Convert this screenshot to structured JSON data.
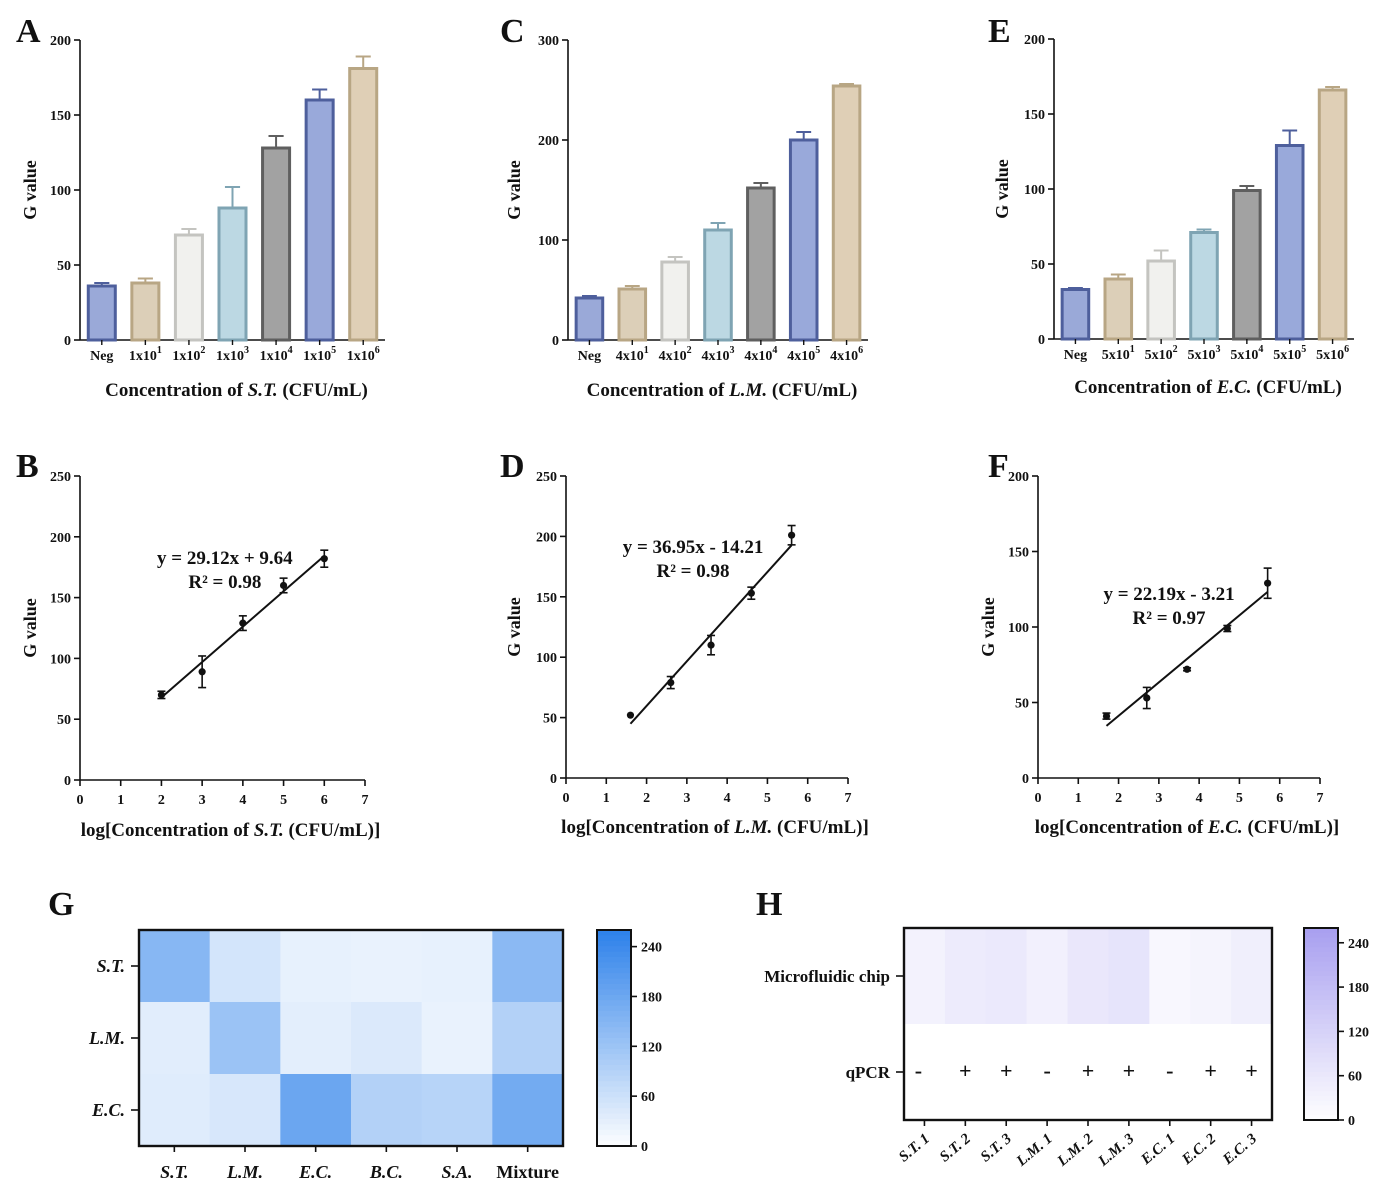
{
  "chart_data": [
    {
      "id": "A",
      "type": "bar",
      "panel_label": "A",
      "categories": [
        "Neg",
        "1x10^1",
        "1x10^2",
        "1x10^3",
        "1x10^4",
        "1x10^5",
        "1x10^6"
      ],
      "tick_labels": [
        {
          "base": "Neg",
          "sup": ""
        },
        {
          "base": "1x10",
          "sup": "1"
        },
        {
          "base": "1x10",
          "sup": "2"
        },
        {
          "base": "1x10",
          "sup": "3"
        },
        {
          "base": "1x10",
          "sup": "4"
        },
        {
          "base": "1x10",
          "sup": "5"
        },
        {
          "base": "1x10",
          "sup": "6"
        }
      ],
      "values": [
        36,
        38,
        70,
        88,
        128,
        160,
        181
      ],
      "errors": [
        2,
        3,
        4,
        14,
        8,
        7,
        8
      ],
      "fills": [
        "#9aa9d8",
        "#dccfb8",
        "#f1f1ee",
        "#bcd8e3",
        "#a2a2a2",
        "#99a9da",
        "#dfcfb6"
      ],
      "strokes": [
        "#4e5f9c",
        "#b8a684",
        "#c4c4c0",
        "#7fa4b3",
        "#5f5f5f",
        "#4e5f9c",
        "#b8a684"
      ],
      "ylim": [
        0,
        200
      ],
      "yticks": [
        0,
        50,
        100,
        150,
        200
      ],
      "ylabel": "G value",
      "xlabel": {
        "prefix": "Concentration of ",
        "italic": "S.T.",
        "suffix": " (CFU/mL)"
      }
    },
    {
      "id": "C",
      "type": "bar",
      "panel_label": "C",
      "categories": [
        "Neg",
        "4x10^1",
        "4x10^2",
        "4x10^3",
        "4x10^4",
        "4x10^5",
        "4x10^6"
      ],
      "tick_labels": [
        {
          "base": "Neg",
          "sup": ""
        },
        {
          "base": "4x10",
          "sup": "1"
        },
        {
          "base": "4x10",
          "sup": "2"
        },
        {
          "base": "4x10",
          "sup": "3"
        },
        {
          "base": "4x10",
          "sup": "4"
        },
        {
          "base": "4x10",
          "sup": "5"
        },
        {
          "base": "4x10",
          "sup": "6"
        }
      ],
      "values": [
        42,
        51,
        78,
        110,
        152,
        200,
        254
      ],
      "errors": [
        2,
        3,
        5,
        7,
        5,
        8,
        2
      ],
      "fills": [
        "#9aa9d8",
        "#dccfb8",
        "#f1f1ee",
        "#bcd8e3",
        "#a2a2a2",
        "#99a9da",
        "#dfcfb6"
      ],
      "strokes": [
        "#4e5f9c",
        "#b8a684",
        "#c4c4c0",
        "#7fa4b3",
        "#5f5f5f",
        "#4e5f9c",
        "#b8a684"
      ],
      "ylim": [
        0,
        300
      ],
      "yticks": [
        0,
        100,
        200,
        300
      ],
      "ylabel": "G value",
      "xlabel": {
        "prefix": "Concentration of ",
        "italic": "L.M.",
        "suffix": " (CFU/mL)"
      }
    },
    {
      "id": "E",
      "type": "bar",
      "panel_label": "E",
      "categories": [
        "Neg",
        "5x10^1",
        "5x10^2",
        "5x10^3",
        "5x10^4",
        "5x10^5",
        "5x10^6"
      ],
      "tick_labels": [
        {
          "base": "Neg",
          "sup": ""
        },
        {
          "base": "5x10",
          "sup": "1"
        },
        {
          "base": "5x10",
          "sup": "2"
        },
        {
          "base": "5x10",
          "sup": "3"
        },
        {
          "base": "5x10",
          "sup": "4"
        },
        {
          "base": "5x10",
          "sup": "5"
        },
        {
          "base": "5x10",
          "sup": "6"
        }
      ],
      "values": [
        33,
        40,
        52,
        71,
        99,
        129,
        166
      ],
      "errors": [
        1,
        3,
        7,
        2,
        3,
        10,
        2
      ],
      "fills": [
        "#9aa9d8",
        "#dccfb8",
        "#f1f1ee",
        "#bcd8e3",
        "#a2a2a2",
        "#99a9da",
        "#dfcfb6"
      ],
      "strokes": [
        "#4e5f9c",
        "#b8a684",
        "#c4c4c0",
        "#7fa4b3",
        "#5f5f5f",
        "#4e5f9c",
        "#b8a684"
      ],
      "ylim": [
        0,
        200
      ],
      "yticks": [
        0,
        50,
        100,
        150,
        200
      ],
      "ylabel": "G value",
      "xlabel": {
        "prefix": "Concentration of ",
        "italic": "E.C.",
        "suffix": " (CFU/mL)"
      }
    },
    {
      "id": "B",
      "type": "scatter",
      "panel_label": "B",
      "x": [
        2,
        3,
        4,
        5,
        6
      ],
      "y": [
        70,
        89,
        129,
        160,
        182
      ],
      "yerr": [
        3,
        13,
        6,
        6,
        7
      ],
      "fit": {
        "slope": 29.12,
        "intercept": 9.64,
        "x_range": [
          2,
          6
        ]
      },
      "equation": "y = 29.12x + 9.64",
      "r2": "R² = 0.98",
      "xlim": [
        0,
        7
      ],
      "xticks": [
        0,
        1,
        2,
        3,
        4,
        5,
        6,
        7
      ],
      "ylim": [
        0,
        250
      ],
      "yticks": [
        0,
        50,
        100,
        150,
        200,
        250
      ],
      "ylabel": "G value",
      "xlabel": {
        "prefix": "log[Concentration of ",
        "italic": "S.T.",
        "suffix": " (CFU/mL)]"
      }
    },
    {
      "id": "D",
      "type": "scatter",
      "panel_label": "D",
      "x": [
        1.6,
        2.6,
        3.6,
        4.6,
        5.6
      ],
      "y": [
        52,
        79,
        110,
        153,
        201
      ],
      "yerr": [
        0,
        5,
        8,
        5,
        8
      ],
      "fit": {
        "slope": 36.95,
        "intercept": -14.21,
        "x_range": [
          1.6,
          5.6
        ]
      },
      "equation": "y = 36.95x - 14.21",
      "r2": "R² = 0.98",
      "xlim": [
        0,
        7
      ],
      "xticks": [
        0,
        1,
        2,
        3,
        4,
        5,
        6,
        7
      ],
      "ylim": [
        0,
        250
      ],
      "yticks": [
        0,
        50,
        100,
        150,
        200,
        250
      ],
      "ylabel": "G value",
      "xlabel": {
        "prefix": "log[Concentration of ",
        "italic": "L.M.",
        "suffix": " (CFU/mL)]"
      }
    },
    {
      "id": "F",
      "type": "scatter",
      "panel_label": "F",
      "x": [
        1.7,
        2.7,
        3.7,
        4.7,
        5.7
      ],
      "y": [
        41,
        53,
        72,
        99,
        129
      ],
      "yerr": [
        2,
        7,
        1,
        2,
        10
      ],
      "fit": {
        "slope": 22.19,
        "intercept": -3.21,
        "x_range": [
          1.7,
          5.7
        ]
      },
      "equation": "y = 22.19x - 3.21",
      "r2": "R² = 0.97",
      "xlim": [
        0,
        7
      ],
      "xticks": [
        0,
        1,
        2,
        3,
        4,
        5,
        6,
        7
      ],
      "ylim": [
        0,
        200
      ],
      "yticks": [
        0,
        50,
        100,
        150,
        200
      ],
      "ylabel": "G value",
      "xlabel": {
        "prefix": "log[Concentration of ",
        "italic": "E.C.",
        "suffix": " (CFU/mL)]"
      }
    },
    {
      "id": "G",
      "type": "heatmap",
      "panel_label": "G",
      "rows": [
        "S.T.",
        "L.M.",
        "E.C."
      ],
      "cols": [
        "S.T.",
        "L.M.",
        "E.C.",
        "B.C.",
        "S.A.",
        "Mixture"
      ],
      "values": [
        [
          150,
          55,
          30,
          28,
          30,
          145
        ],
        [
          38,
          125,
          35,
          45,
          28,
          95
        ],
        [
          40,
          50,
          185,
          95,
          90,
          175
        ]
      ],
      "colorbar": {
        "min": 0,
        "max": 260,
        "ticks": [
          0,
          60,
          120,
          180,
          240
        ],
        "color_high": "#2f82ea",
        "color_low": "#ffffff"
      }
    },
    {
      "id": "H",
      "type": "heatmap",
      "panel_label": "H",
      "rows": [
        "Microfluidic chip"
      ],
      "cols": [
        "S.T. 1",
        "S.T. 2",
        "S.T. 3",
        "L.M. 1",
        "L.M. 2",
        "L.M. 3",
        "E.C. 1",
        "E.C. 2",
        "E.C. 3"
      ],
      "values": [
        [
          35,
          55,
          60,
          40,
          65,
          75,
          22,
          30,
          45
        ]
      ],
      "qpcr_label": "qPCR",
      "qpcr": [
        "-",
        "+",
        "+",
        "-",
        "+",
        "+",
        "-",
        "+",
        "+"
      ],
      "colorbar": {
        "min": 0,
        "max": 260,
        "ticks": [
          0,
          60,
          120,
          180,
          240
        ],
        "color_high": "#a9a0f0",
        "color_low": "#ffffff"
      }
    }
  ]
}
